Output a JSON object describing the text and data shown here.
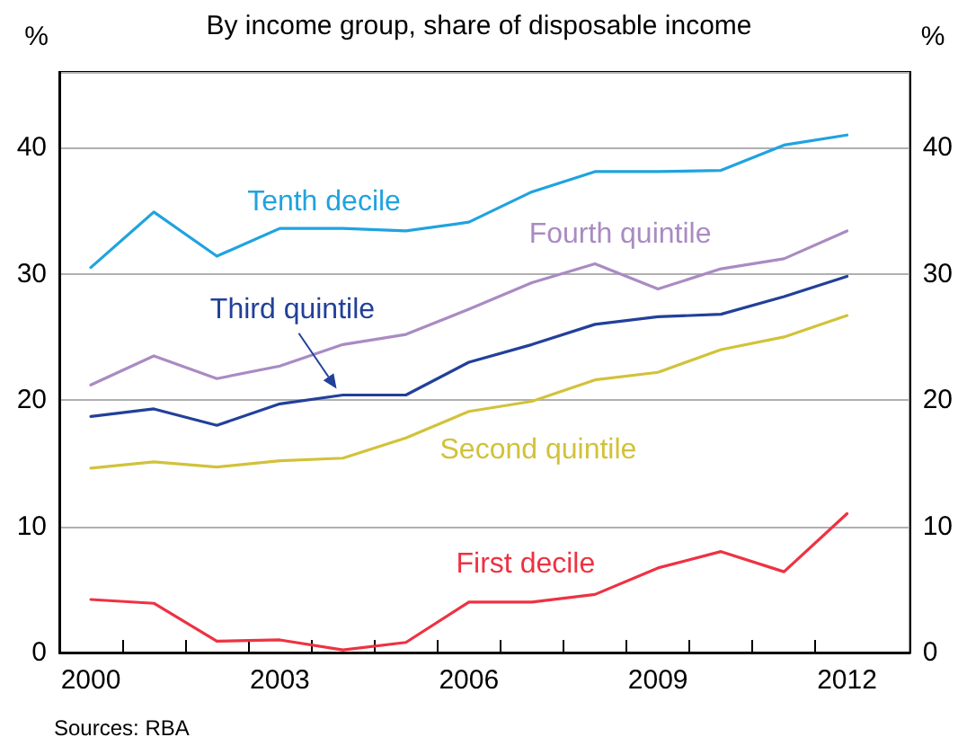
{
  "chart_data": {
    "type": "line",
    "title": "By income group, share of disposable income",
    "ylabel": "%",
    "y2label": "%",
    "annotations": [
      "Sources: RBA"
    ],
    "x": [
      2000,
      2001,
      2002,
      2003,
      2004,
      2005,
      2006,
      2007,
      2008,
      2009,
      2010,
      2011,
      2012
    ],
    "series": [
      {
        "name": "Tenth decile",
        "color": "#1fa3e0",
        "values": [
          30.5,
          34.9,
          31.4,
          33.6,
          33.6,
          33.4,
          34.1,
          36.5,
          38.1,
          38.1,
          38.2,
          40.2,
          41.0
        ]
      },
      {
        "name": "Fourth quintile",
        "color": "#a98bc2",
        "values": [
          21.2,
          23.5,
          21.7,
          22.7,
          24.4,
          25.2,
          27.2,
          29.3,
          30.8,
          28.8,
          30.4,
          31.2,
          33.4
        ]
      },
      {
        "name": "Third quintile",
        "color": "#22409a",
        "values": [
          18.7,
          19.3,
          18.0,
          19.7,
          20.4,
          20.4,
          23.0,
          24.4,
          26.0,
          26.6,
          26.8,
          28.2,
          29.8
        ]
      },
      {
        "name": "Second quintile",
        "color": "#d2c23a",
        "values": [
          14.6,
          15.1,
          14.7,
          15.2,
          15.4,
          17.0,
          19.1,
          19.9,
          21.6,
          22.2,
          24.0,
          25.0,
          26.7
        ]
      },
      {
        "name": "First decile",
        "color": "#ee3242",
        "values": [
          4.2,
          3.9,
          0.9,
          1.0,
          0.2,
          0.8,
          4.0,
          4.0,
          4.6,
          6.7,
          8.0,
          6.4,
          11.0
        ]
      }
    ],
    "xlim": [
      1999.5,
      2013
    ],
    "xticks": [
      2000,
      2003,
      2006,
      2009,
      2012,
      {
        "value": 2000.5,
        "label": null
      },
      {
        "value": 2001.5,
        "label": null
      },
      {
        "value": 2002.5,
        "label": null
      },
      {
        "value": 2003.5,
        "label": null
      },
      {
        "value": 2004.5,
        "label": null
      },
      {
        "value": 2005.5,
        "label": null
      },
      {
        "value": 2006.5,
        "label": null
      },
      {
        "value": 2007.5,
        "label": null
      },
      {
        "value": 2008.5,
        "label": null
      },
      {
        "value": 2009.5,
        "label": null
      },
      {
        "value": 2010.5,
        "label": null
      },
      {
        "value": 2011.5,
        "label": null
      }
    ],
    "ylim": [
      0,
      46
    ],
    "yticks": [
      0,
      10,
      20,
      30,
      40
    ],
    "y2lim": [
      0,
      46
    ],
    "y2ticks": [
      0,
      10,
      20,
      30,
      40
    ],
    "grid": "y",
    "legend": false,
    "marker": "none",
    "line_style": "solid"
  }
}
